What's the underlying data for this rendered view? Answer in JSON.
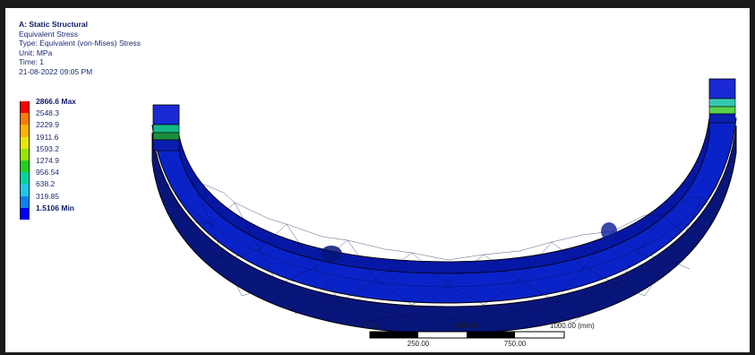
{
  "info": {
    "title": "A: Static Structural",
    "result": "Equivalent Stress",
    "type": "Type: Equivalent (von-Mises) Stress",
    "unit": "Unit: MPa",
    "time": "Time: 1",
    "date": "21-08-2022 09:05 PM"
  },
  "legend": {
    "max_label": "2866.6 Max",
    "min_label": "1.5106 Min",
    "levels": [
      "2548.3",
      "2229.9",
      "1911.6",
      "1593.2",
      "1274.9",
      "956.54",
      "638.2",
      "319.85"
    ],
    "colors": [
      "#ff0000",
      "#ff7a00",
      "#ffb400",
      "#e8e800",
      "#96e600",
      "#1fd21f",
      "#00d7a0",
      "#1ec8e6",
      "#0a82f0",
      "#0000ff"
    ]
  },
  "scale_bar": {
    "top_labels": [
      "0.00",
      "500.00",
      "1000.00 (mm)"
    ],
    "bottom_labels": [
      "250.00",
      "750.00"
    ]
  }
}
